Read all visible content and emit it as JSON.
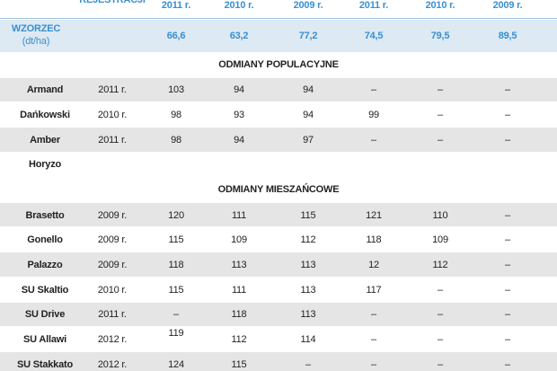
{
  "header": {
    "registration": "REJESTRACJI",
    "years": [
      "2011 r.",
      "2010 r.",
      "2009 r.",
      "2011 r.",
      "2010 r.",
      "2009 r."
    ]
  },
  "reference": {
    "label": "WZORZEC",
    "unit": "(dt/ha)",
    "values": [
      "66,6",
      "63,2",
      "77,2",
      "74,5",
      "79,5",
      "89,5"
    ]
  },
  "sections": [
    {
      "title": "ODMIANY POPULACYJNE",
      "rows": [
        [
          "Armand",
          "2011 r.",
          "103",
          "94",
          "94",
          "–",
          "–",
          "–"
        ],
        [
          "Dańkowski",
          "2010 r.",
          "98",
          "93",
          "94",
          "99",
          "–",
          "–"
        ],
        [
          "Amber",
          "2011 r.",
          "98",
          "94",
          "97",
          "–",
          "–",
          "–"
        ],
        [
          "Horyzo"
        ]
      ]
    },
    {
      "title": "ODMIANY MIESZAŃCOWE",
      "rows": [
        [
          "Brasetto",
          "2009 r.",
          "120",
          "111",
          "115",
          "121",
          "110",
          "–"
        ],
        [
          "Gonello",
          "2009 r.",
          "115",
          "109",
          "112",
          "118",
          "109",
          "–"
        ],
        [
          "Palazzo",
          "2009 r.",
          "118",
          "113",
          "113",
          "12",
          "112",
          "–"
        ],
        [
          "SU Skaltio",
          "2010 r.",
          "115",
          "111",
          "113",
          "117",
          "–",
          "–"
        ],
        [
          "SU Drive",
          "2011 r.",
          "–",
          "118",
          "113",
          "–",
          "–",
          "–"
        ],
        [
          "SU Allawi",
          "2012 r.",
          "119",
          "112",
          "114",
          "–",
          "–",
          "–"
        ],
        [
          "SU Stakkato",
          "2012 r.",
          "124",
          "115",
          "–",
          "–",
          "–",
          "–"
        ]
      ]
    }
  ]
}
